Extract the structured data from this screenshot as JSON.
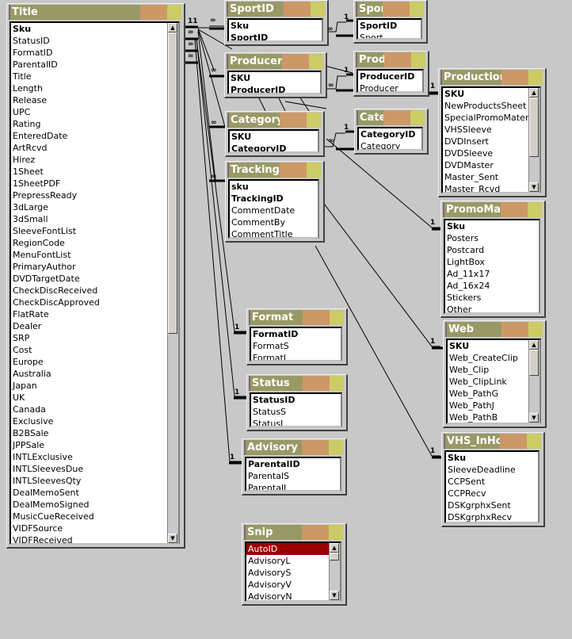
{
  "window": {
    "type": "Relationships diagram"
  },
  "colors": {
    "background": "#c8c8c8",
    "title_bar": "#999966",
    "title_bar_mid": "#cc9966",
    "title_bar_end": "#cccc66",
    "selected_row": "#990000"
  },
  "cardinality": {
    "one": "1",
    "many": "∞",
    "title_one_label": "11"
  },
  "tables": [
    {
      "name": "Title",
      "scroll": true,
      "fields": [
        {
          "name": "Sku",
          "key": true
        },
        {
          "name": "StatusID"
        },
        {
          "name": "FormatID"
        },
        {
          "name": "ParentalID"
        },
        {
          "name": "Title"
        },
        {
          "name": "Length"
        },
        {
          "name": "Release"
        },
        {
          "name": "UPC"
        },
        {
          "name": "Rating"
        },
        {
          "name": "EnteredDate"
        },
        {
          "name": "ArtRcvd"
        },
        {
          "name": "Hirez"
        },
        {
          "name": "1Sheet"
        },
        {
          "name": "1SheetPDF"
        },
        {
          "name": "PrepressReady"
        },
        {
          "name": "3dLarge"
        },
        {
          "name": "3dSmall"
        },
        {
          "name": "SleeveFontList"
        },
        {
          "name": "RegionCode"
        },
        {
          "name": "MenuFontList"
        },
        {
          "name": "PrimaryAuthor"
        },
        {
          "name": "DVDTargetDate"
        },
        {
          "name": "CheckDiscReceived"
        },
        {
          "name": "CheckDiscApproved"
        },
        {
          "name": "FlatRate"
        },
        {
          "name": "Dealer"
        },
        {
          "name": "SRP"
        },
        {
          "name": "Cost"
        },
        {
          "name": "Europe"
        },
        {
          "name": "Australia"
        },
        {
          "name": "Japan"
        },
        {
          "name": "UK"
        },
        {
          "name": "Canada"
        },
        {
          "name": "Exclusive"
        },
        {
          "name": "B2BSale"
        },
        {
          "name": "JPPSale"
        },
        {
          "name": "INTLExclusive"
        },
        {
          "name": "INTLSleevesDue"
        },
        {
          "name": "INTLSleevesQty"
        },
        {
          "name": "DealMemoSent"
        },
        {
          "name": "DealMemoSigned"
        },
        {
          "name": "MusicCueReceived"
        },
        {
          "name": "VIDFSource"
        },
        {
          "name": "VIDFReceived"
        }
      ]
    },
    {
      "name": "SportID",
      "fields": [
        {
          "name": "Sku",
          "key": true
        },
        {
          "name": "SportID",
          "key": true
        }
      ]
    },
    {
      "name": "Sport",
      "fields": [
        {
          "name": "SportID",
          "key": true
        },
        {
          "name": "Sport"
        }
      ]
    },
    {
      "name": "ProducerID",
      "fields": [
        {
          "name": "SKU",
          "key": true
        },
        {
          "name": "ProducerID",
          "key": true
        }
      ]
    },
    {
      "name": "Producer",
      "fields": [
        {
          "name": "ProducerID",
          "key": true
        },
        {
          "name": "Producer"
        }
      ]
    },
    {
      "name": "Production",
      "scroll": true,
      "fields": [
        {
          "name": "SKU",
          "key": true
        },
        {
          "name": "NewProductsSheet"
        },
        {
          "name": "SpecialPromoMaterials"
        },
        {
          "name": "VHSSleeve"
        },
        {
          "name": "DVDInsert"
        },
        {
          "name": "DVDSleeve"
        },
        {
          "name": "DVDMaster"
        },
        {
          "name": "Master_Sent"
        },
        {
          "name": "Master_Rcvd"
        }
      ]
    },
    {
      "name": "CategoryID",
      "fields": [
        {
          "name": "SKU",
          "key": true
        },
        {
          "name": "CategoryID",
          "key": true
        }
      ]
    },
    {
      "name": "Category",
      "fields": [
        {
          "name": "CategoryID",
          "key": true
        },
        {
          "name": "Category"
        }
      ]
    },
    {
      "name": "Tracking",
      "fields": [
        {
          "name": "sku",
          "key": true
        },
        {
          "name": "TrackingID",
          "key": true
        },
        {
          "name": "CommentDate"
        },
        {
          "name": "CommentBy"
        },
        {
          "name": "CommentTitle"
        }
      ]
    },
    {
      "name": "PromoMaterials",
      "fields": [
        {
          "name": "Sku",
          "key": true
        },
        {
          "name": "Posters"
        },
        {
          "name": "Postcard"
        },
        {
          "name": "LightBox"
        },
        {
          "name": "Ad_11x17"
        },
        {
          "name": "Ad_16x24"
        },
        {
          "name": "Stickers"
        },
        {
          "name": "Other"
        }
      ]
    },
    {
      "name": "Format",
      "fields": [
        {
          "name": "FormatID",
          "key": true
        },
        {
          "name": "FormatS"
        },
        {
          "name": "FormatL"
        }
      ]
    },
    {
      "name": "Web",
      "scroll": true,
      "fields": [
        {
          "name": "SKU",
          "key": true
        },
        {
          "name": "Web_CreateClip"
        },
        {
          "name": "Web_Clip"
        },
        {
          "name": "Web_ClipLink"
        },
        {
          "name": "Web_PathG"
        },
        {
          "name": "Web_PathJ"
        },
        {
          "name": "Web_PathB"
        }
      ]
    },
    {
      "name": "Status",
      "fields": [
        {
          "name": "StatusID",
          "key": true
        },
        {
          "name": "StatusS"
        },
        {
          "name": "StatusL"
        }
      ]
    },
    {
      "name": "Advisory",
      "fields": [
        {
          "name": "ParentalID",
          "key": true
        },
        {
          "name": "ParentalS"
        },
        {
          "name": "ParentalL"
        }
      ]
    },
    {
      "name": "VHS_InHouse",
      "fields": [
        {
          "name": "Sku",
          "key": true
        },
        {
          "name": "SleeveDeadline"
        },
        {
          "name": "CCPSent"
        },
        {
          "name": "CCPRecv"
        },
        {
          "name": "DSKgrphxSent"
        },
        {
          "name": "DSKgrphxRecv"
        }
      ]
    },
    {
      "name": "Snip",
      "scroll": true,
      "fields": [
        {
          "name": "AutoID",
          "selected": true
        },
        {
          "name": "AdvisoryL"
        },
        {
          "name": "AdvisoryS"
        },
        {
          "name": "AdvisoryV"
        },
        {
          "name": "AdvisoryN"
        }
      ]
    }
  ]
}
